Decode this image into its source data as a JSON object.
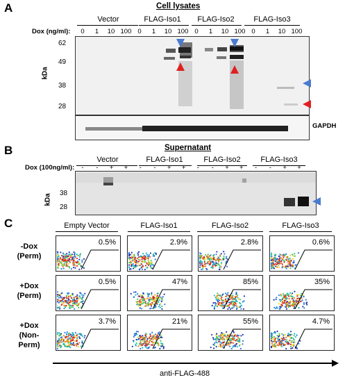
{
  "panelA": {
    "letter": "A",
    "title": "Cell lysates",
    "groups": [
      "Vector",
      "FLAG-Iso1",
      "FLAG-Iso2",
      "FLAG-Iso3"
    ],
    "dox_label": "Dox (ng/ml):",
    "dox_values": [
      "0",
      "1",
      "10",
      "100",
      "0",
      "1",
      "10",
      "100",
      "0",
      "1",
      "10",
      "100",
      "0",
      "1",
      "10",
      "100"
    ],
    "ylabel": "kDa",
    "yticks": [
      "62",
      "49",
      "38",
      "28"
    ],
    "loading_label": "GAPDH",
    "marker_colors": {
      "blue": "#4a7bd0",
      "red": "#e02020"
    }
  },
  "panelB": {
    "letter": "B",
    "title": "Supernatant",
    "groups": [
      "Vector",
      "FLAG-Iso1",
      "FLAG-Iso2",
      "FLAG-Iso3"
    ],
    "dox_label": "Dox (100ng/ml):",
    "dox_values": [
      "-",
      "-",
      "+",
      "+",
      "-",
      "-",
      "+",
      "+",
      "-",
      "-",
      "+",
      "+",
      "-",
      "-",
      "+",
      "+"
    ],
    "ylabel": "kDa",
    "yticks": [
      "38",
      "28"
    ]
  },
  "panelC": {
    "letter": "C",
    "columns": [
      "Empty Vector",
      "FLAG-Iso1",
      "FLAG-Iso2",
      "FLAG-Iso3"
    ],
    "rows": [
      {
        "label1": "-Dox",
        "label2": "(Perm)",
        "values": [
          "0.5%",
          "2.9%",
          "2.8%",
          "0.6%"
        ]
      },
      {
        "label1": "+Dox",
        "label2": "(Perm)",
        "values": [
          "0.5%",
          "47%",
          "85%",
          "35%"
        ]
      },
      {
        "label1": "+Dox",
        "label2": "(Non-",
        "label3": "Perm)",
        "values": [
          "3.7%",
          "21%",
          "55%",
          "4.7%"
        ]
      }
    ],
    "xlabel": "anti-FLAG-488"
  }
}
